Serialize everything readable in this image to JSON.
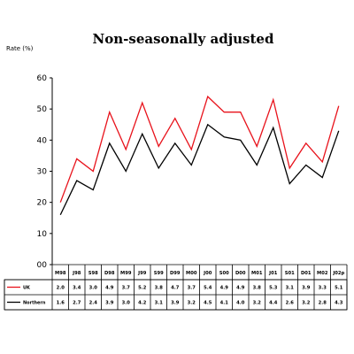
{
  "chart_data": {
    "type": "line",
    "title": "Non-seasonally adjusted",
    "ylabel": "Rate (%)",
    "xlabel": "",
    "ylim": [
      0,
      60
    ],
    "yticks": [
      "00",
      "10",
      "20",
      "30",
      "40",
      "50",
      "60"
    ],
    "grid": false,
    "legend": "table-below",
    "categories": [
      "M98",
      "J98",
      "S98",
      "D98",
      "M99",
      "J99",
      "S99",
      "D99",
      "M00",
      "J00",
      "S00",
      "D00",
      "M01",
      "J01",
      "S01",
      "D01",
      "M02",
      "J02p"
    ],
    "series": [
      {
        "name": "UK",
        "color": "#e8121b",
        "values": [
          2.0,
          3.4,
          3.0,
          4.9,
          3.7,
          5.2,
          3.8,
          4.7,
          3.7,
          5.4,
          4.9,
          4.9,
          3.8,
          5.3,
          3.1,
          3.9,
          3.3,
          5.1
        ],
        "cells": [
          "2.0",
          "3.4",
          "3.0",
          "4.9",
          "3.7",
          "5.2",
          "3.8",
          "4.7",
          "3.7",
          "5.4",
          "4.9",
          "4.9",
          "3.8",
          "5.3",
          "3.1",
          "3.9",
          "3.3",
          "5.1"
        ]
      },
      {
        "name": "Northern",
        "color": "#000000",
        "values": [
          1.6,
          2.7,
          2.4,
          3.9,
          3.0,
          4.2,
          3.1,
          3.9,
          3.2,
          4.5,
          4.1,
          4.0,
          3.2,
          4.4,
          2.6,
          3.2,
          2.8,
          4.3
        ],
        "cells": [
          "1.6",
          "2.7",
          "2.4",
          "3.9",
          "3.0",
          "4.2",
          "3.1",
          "3.9",
          "3.2",
          "4.5",
          "4.1",
          "4.0",
          "3.2",
          "4.4",
          "2.6",
          "3.2",
          "2.8",
          "4.3"
        ]
      }
    ]
  }
}
